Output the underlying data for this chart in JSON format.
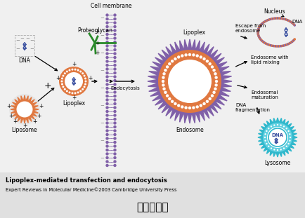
{
  "title": "转染原理图",
  "title_fontsize": 13,
  "title_fontweight": "bold",
  "bg_color": "#e6e6e6",
  "diagram_bg": "#e6e6e6",
  "caption_line1": "Lipoplex-mediated transfection and endocytosis",
  "caption_line2": "Expert Reviews in Molecular Medicine©2003 Cambridge University Press",
  "label_DNA": "DNA",
  "label_Liposome": "Liposome",
  "label_Lipoplex": "Lipoplex",
  "label_Proteoglycan": "Proteoglycan",
  "label_CellMembrane": "Cell membrane",
  "label_Endocytosis": "Endocytosis",
  "label_Lipoplex2": "Lipoplex",
  "label_Endosome": "Endosome",
  "label_EndosomeLipid": "Endosome with\nlipid mixing",
  "label_EndosomalMat": "Endosomal\nmaturation",
  "label_DNAfrag": "DNA\nfragmentation",
  "label_Lysosome": "Lysosome",
  "label_EscapeEndosome": "Escape from\nendosome",
  "label_Nucleus": "Nucleus",
  "label_DNA2": "DNA",
  "orange_color": "#E07840",
  "purple_color": "#8060A8",
  "teal_color": "#30B8CC",
  "teal_light": "#60D0E0",
  "green_color": "#2A8A2A",
  "blue_color": "#3A50A0",
  "dark_color": "#222222",
  "white_color": "#FFFFFF",
  "gray_color": "#888888"
}
